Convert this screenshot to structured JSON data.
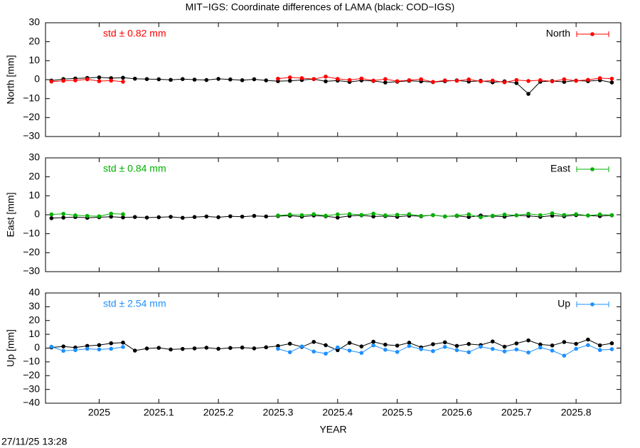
{
  "title": "MIT−IGS: Coordinate differences of LAMA (black: COD−IGS)",
  "timestamp": "27/11/25 13:28",
  "chart_data": [
    {
      "type": "line",
      "y_label": "North [mm]",
      "annotation": "std ± 0.82 mm",
      "xlim": [
        2024.91,
        2025.875
      ],
      "ylim": [
        -30,
        30
      ],
      "yticks": [
        {
          "value": -30,
          "label": "−30"
        },
        {
          "value": -20,
          "label": "−20"
        },
        {
          "value": -10,
          "label": "−10"
        },
        0,
        10,
        20,
        30
      ],
      "legend": "top-right",
      "x": [
        2024.92,
        2024.94,
        2024.96,
        2024.98,
        2025,
        2025.02,
        2025.04,
        2025.06,
        2025.08,
        2025.1,
        2025.12,
        2025.14,
        2025.16,
        2025.18,
        2025.2,
        2025.22,
        2025.24,
        2025.26,
        2025.28,
        2025.3,
        2025.32,
        2025.34,
        2025.36,
        2025.38,
        2025.4,
        2025.42,
        2025.44,
        2025.46,
        2025.48,
        2025.5,
        2025.52,
        2025.54,
        2025.56,
        2025.58,
        2025.6,
        2025.62,
        2025.64,
        2025.66,
        2025.68,
        2025.7,
        2025.72,
        2025.74,
        2025.76,
        2025.78,
        2025.8,
        2025.82,
        2025.84,
        2025.86
      ],
      "series": [
        {
          "color": "#000000",
          "values": [
            -0.5,
            0.3,
            0.6,
            0.9,
            1.2,
            0.8,
            1.0,
            0.5,
            0.3,
            0.2,
            -0.1,
            0.3,
            0.0,
            -0.2,
            0.4,
            0.1,
            -0.3,
            0.2,
            -0.4,
            -0.8,
            -0.6,
            -0.2,
            0.3,
            -0.9,
            -0.5,
            -1.2,
            -0.4,
            -0.7,
            -1.5,
            -1.1,
            -0.6,
            -0.9,
            -1.3,
            -0.8,
            -0.4,
            -1.0,
            -0.6,
            -1.4,
            -0.9,
            -1.8,
            -7.5,
            -1.1,
            -0.7,
            -1.2,
            -0.5,
            -0.8,
            -0.3,
            -1.5
          ]
        },
        {
          "name": "North",
          "color": "#ff0000",
          "values": [
            -1.0,
            -0.6,
            -0.4,
            0.2,
            -0.8,
            -0.5,
            -1.1,
            null,
            null,
            null,
            null,
            null,
            null,
            null,
            null,
            null,
            null,
            null,
            null,
            0.5,
            1.2,
            0.8,
            0.3,
            1.6,
            0.4,
            -0.2,
            0.6,
            -0.5,
            0.3,
            -0.8,
            -0.3,
            0.2,
            -1.2,
            -0.4,
            -0.6,
            0.1,
            -0.9,
            -0.5,
            -1.4,
            -0.2,
            -0.7,
            -0.3,
            -0.9,
            0.2,
            -0.6,
            -0.1,
            0.8,
            0.5
          ]
        }
      ]
    },
    {
      "type": "line",
      "y_label": "East [mm]",
      "annotation": "std ± 0.84 mm",
      "xlim": [
        2024.91,
        2025.875
      ],
      "ylim": [
        -30,
        30
      ],
      "yticks": [
        {
          "value": -30,
          "label": "−30"
        },
        {
          "value": -20,
          "label": "−20"
        },
        {
          "value": -10,
          "label": "−10"
        },
        0,
        10,
        20,
        30
      ],
      "legend": "top-right",
      "x": [
        2024.92,
        2024.94,
        2024.96,
        2024.98,
        2025,
        2025.02,
        2025.04,
        2025.06,
        2025.08,
        2025.1,
        2025.12,
        2025.14,
        2025.16,
        2025.18,
        2025.2,
        2025.22,
        2025.24,
        2025.26,
        2025.28,
        2025.3,
        2025.32,
        2025.34,
        2025.36,
        2025.38,
        2025.4,
        2025.42,
        2025.44,
        2025.46,
        2025.48,
        2025.5,
        2025.52,
        2025.54,
        2025.56,
        2025.58,
        2025.6,
        2025.62,
        2025.64,
        2025.66,
        2025.68,
        2025.7,
        2025.72,
        2025.74,
        2025.76,
        2025.78,
        2025.8,
        2025.82,
        2025.84,
        2025.86
      ],
      "series": [
        {
          "color": "#000000",
          "values": [
            -1.8,
            -1.5,
            -1.2,
            -1.6,
            -1.3,
            -1.0,
            -1.4,
            -1.2,
            -1.5,
            -1.3,
            -1.1,
            -1.6,
            -1.2,
            -0.9,
            -1.3,
            -0.8,
            -1.0,
            -0.6,
            -0.9,
            -0.7,
            -0.5,
            -1.0,
            -0.4,
            -0.8,
            -1.5,
            -0.6,
            -0.3,
            -0.9,
            -0.7,
            -1.1,
            -0.5,
            -0.8,
            -0.2,
            -0.9,
            -0.6,
            -1.2,
            -0.4,
            -0.7,
            -1.0,
            -0.3,
            -0.6,
            -1.1,
            -0.5,
            -0.8,
            -0.2,
            -0.4,
            -0.7,
            -0.3
          ]
        },
        {
          "name": "East",
          "color": "#00b000",
          "values": [
            0.2,
            0.5,
            -0.3,
            -0.6,
            -0.8,
            0.6,
            0.3,
            null,
            null,
            null,
            null,
            null,
            null,
            null,
            null,
            null,
            null,
            null,
            null,
            -0.4,
            0.1,
            -0.2,
            0.3,
            -0.5,
            0.2,
            0.4,
            -0.1,
            0.6,
            -0.3,
            0.0,
            0.3,
            -0.6,
            -0.2,
            -0.9,
            -0.4,
            0.2,
            -1.3,
            -0.5,
            0.1,
            -0.3,
            0.5,
            -0.2,
            0.8,
            -0.1,
            0.3,
            -0.4,
            0.2,
            -0.2
          ]
        }
      ]
    },
    {
      "type": "line",
      "y_label": "Up [mm]",
      "x_label": "YEAR",
      "annotation": "std ± 2.54 mm",
      "xlim": [
        2024.91,
        2025.875
      ],
      "ylim": [
        -40,
        40
      ],
      "xticks": [
        2025,
        2025.1,
        2025.2,
        2025.3,
        2025.4,
        2025.5,
        2025.6,
        2025.7,
        2025.8
      ],
      "yticks": [
        {
          "value": -40,
          "label": "−40"
        },
        {
          "value": -30,
          "label": "−30"
        },
        {
          "value": -20,
          "label": "−20"
        },
        {
          "value": -10,
          "label": "−10"
        },
        0,
        10,
        20,
        30,
        40
      ],
      "legend": "top-right",
      "x": [
        2024.92,
        2024.94,
        2024.96,
        2024.98,
        2025,
        2025.02,
        2025.04,
        2025.06,
        2025.08,
        2025.1,
        2025.12,
        2025.14,
        2025.16,
        2025.18,
        2025.2,
        2025.22,
        2025.24,
        2025.26,
        2025.28,
        2025.3,
        2025.32,
        2025.34,
        2025.36,
        2025.38,
        2025.4,
        2025.42,
        2025.44,
        2025.46,
        2025.48,
        2025.5,
        2025.52,
        2025.54,
        2025.56,
        2025.58,
        2025.6,
        2025.62,
        2025.64,
        2025.66,
        2025.68,
        2025.7,
        2025.72,
        2025.74,
        2025.76,
        2025.78,
        2025.8,
        2025.82,
        2025.84,
        2025.86
      ],
      "series": [
        {
          "color": "#000000",
          "values": [
            0.5,
            1.2,
            0.4,
            1.6,
            2.2,
            3.5,
            4.0,
            -1.8,
            -0.3,
            0.2,
            -1.0,
            -0.6,
            -0.2,
            0.3,
            -0.5,
            0.1,
            0.4,
            -0.2,
            0.6,
            1.5,
            3.2,
            0.8,
            4.5,
            2.1,
            -1.5,
            3.8,
            1.2,
            4.6,
            2.5,
            1.8,
            3.9,
            0.5,
            2.8,
            4.2,
            1.6,
            3.0,
            2.2,
            4.8,
            1.0,
            3.4,
            5.6,
            2.6,
            1.9,
            4.4,
            3.1,
            6.2,
            2.0,
            3.5
          ]
        },
        {
          "name": "Up",
          "color": "#1e90ff",
          "values": [
            1.0,
            -2.0,
            -1.5,
            -0.5,
            -1.0,
            -0.5,
            0.8,
            null,
            null,
            null,
            null,
            null,
            null,
            null,
            null,
            null,
            null,
            null,
            null,
            -0.5,
            -3.0,
            1.2,
            -2.5,
            -4.0,
            0.5,
            -1.8,
            -3.5,
            2.0,
            -1.2,
            -2.8,
            1.5,
            -0.8,
            -2.2,
            0.9,
            -1.5,
            -3.0,
            1.0,
            -0.6,
            -2.4,
            -1.0,
            -3.2,
            0.4,
            -1.8,
            -5.5,
            -0.5,
            2.2,
            -1.4,
            -0.8
          ]
        }
      ]
    }
  ]
}
